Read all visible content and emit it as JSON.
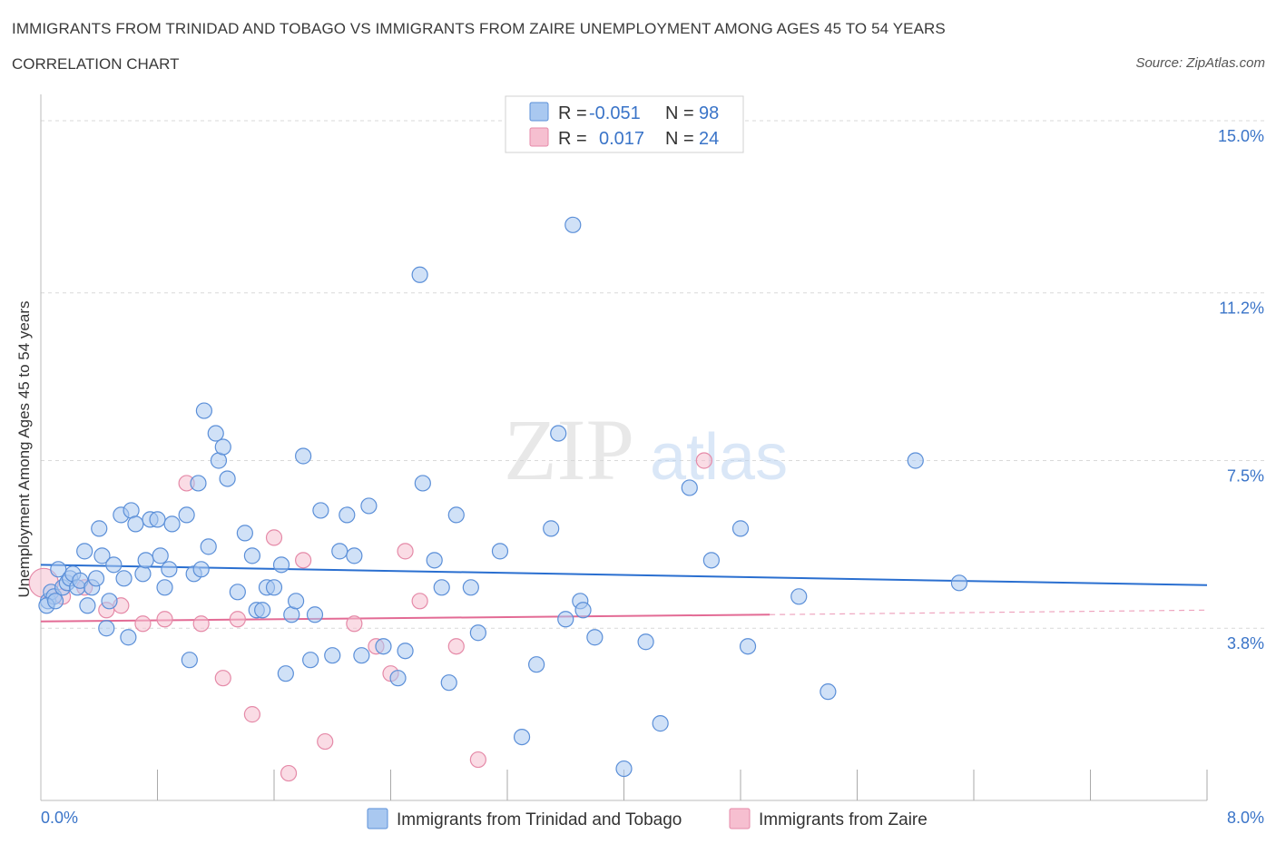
{
  "title": "IMMIGRANTS FROM TRINIDAD AND TOBAGO VS IMMIGRANTS FROM ZAIRE UNEMPLOYMENT AMONG AGES 45 TO 54 YEARS",
  "subtitle": "CORRELATION CHART",
  "source": "Source: ZipAtlas.com",
  "watermark": {
    "zip": "ZIP",
    "atlas": "atlas"
  },
  "colors": {
    "blue_fill": "#a9c8f0",
    "blue_stroke": "#5b8fd8",
    "blue_line": "#2a6fd0",
    "pink_fill": "#f6bfd0",
    "pink_stroke": "#e58aa8",
    "pink_line": "#e36b95",
    "accent_text": "#3a74c8",
    "grid": "#d9d9d9"
  },
  "legend": {
    "rows": [
      {
        "r_label": "R = ",
        "r_value": "-0.051",
        "n_label": "N = ",
        "n_value": "98",
        "color": "blue"
      },
      {
        "r_label": "R = ",
        "r_value": "0.017",
        "n_label": "N = ",
        "n_value": "24",
        "color": "pink"
      }
    ]
  },
  "chart_data": {
    "type": "scatter",
    "title": "IMMIGRANTS FROM TRINIDAD AND TOBAGO VS IMMIGRANTS FROM ZAIRE UNEMPLOYMENT AMONG AGES 45 TO 54 YEARS",
    "subtitle": "CORRELATION CHART",
    "xlabel": "",
    "ylabel": "Unemployment Among Ages 45 to 54 years",
    "xlim": [
      0,
      8
    ],
    "ylim": [
      0,
      15.3
    ],
    "x_tick_labels": [
      {
        "value": 0,
        "label": "0.0%"
      },
      {
        "value": 8,
        "label": "8.0%"
      }
    ],
    "y_tick_labels": [
      {
        "value": 15.0,
        "label": "15.0%"
      },
      {
        "value": 11.2,
        "label": "11.2%"
      },
      {
        "value": 7.5,
        "label": "7.5%"
      },
      {
        "value": 3.8,
        "label": "3.8%"
      }
    ],
    "x_minor_ticks": [
      0.8,
      1.6,
      2.4,
      3.2,
      4.0,
      4.8,
      5.6,
      6.4,
      7.2,
      8.0
    ],
    "grid": true,
    "legend_position": "bottom-center",
    "series": [
      {
        "name": "Immigrants from Trinidad and Tobago",
        "color": "blue",
        "trend": {
          "x": [
            0,
            8
          ],
          "y": [
            5.2,
            4.75
          ]
        },
        "points": [
          [
            0.05,
            4.4
          ],
          [
            0.07,
            4.6
          ],
          [
            0.09,
            4.5
          ],
          [
            0.12,
            5.1
          ],
          [
            0.15,
            4.7
          ],
          [
            0.18,
            4.8
          ],
          [
            0.2,
            4.9
          ],
          [
            0.22,
            5.0
          ],
          [
            0.25,
            4.7
          ],
          [
            0.27,
            4.85
          ],
          [
            0.3,
            5.5
          ],
          [
            0.32,
            4.3
          ],
          [
            0.35,
            4.7
          ],
          [
            0.38,
            4.9
          ],
          [
            0.4,
            6.0
          ],
          [
            0.42,
            5.4
          ],
          [
            0.45,
            3.8
          ],
          [
            0.47,
            4.4
          ],
          [
            0.5,
            5.2
          ],
          [
            0.55,
            6.3
          ],
          [
            0.57,
            4.9
          ],
          [
            0.6,
            3.6
          ],
          [
            0.62,
            6.4
          ],
          [
            0.65,
            6.1
          ],
          [
            0.7,
            5.0
          ],
          [
            0.72,
            5.3
          ],
          [
            0.75,
            6.2
          ],
          [
            0.8,
            6.2
          ],
          [
            0.82,
            5.4
          ],
          [
            0.85,
            4.7
          ],
          [
            0.88,
            5.1
          ],
          [
            0.9,
            6.1
          ],
          [
            1.0,
            6.3
          ],
          [
            1.02,
            3.1
          ],
          [
            1.05,
            5.0
          ],
          [
            1.08,
            7.0
          ],
          [
            1.1,
            5.1
          ],
          [
            1.12,
            8.6
          ],
          [
            1.15,
            5.6
          ],
          [
            1.2,
            8.1
          ],
          [
            1.22,
            7.5
          ],
          [
            1.25,
            7.8
          ],
          [
            1.28,
            7.1
          ],
          [
            1.35,
            4.6
          ],
          [
            1.4,
            5.9
          ],
          [
            1.45,
            5.4
          ],
          [
            1.48,
            4.2
          ],
          [
            1.52,
            4.2
          ],
          [
            1.55,
            4.7
          ],
          [
            1.6,
            4.7
          ],
          [
            1.65,
            5.2
          ],
          [
            1.68,
            2.8
          ],
          [
            1.72,
            4.1
          ],
          [
            1.75,
            4.4
          ],
          [
            1.8,
            7.6
          ],
          [
            1.85,
            3.1
          ],
          [
            1.88,
            4.1
          ],
          [
            1.92,
            6.4
          ],
          [
            2.0,
            3.2
          ],
          [
            2.05,
            5.5
          ],
          [
            2.1,
            6.3
          ],
          [
            2.15,
            5.4
          ],
          [
            2.2,
            3.2
          ],
          [
            2.25,
            6.5
          ],
          [
            2.35,
            3.4
          ],
          [
            2.45,
            2.7
          ],
          [
            2.5,
            3.3
          ],
          [
            2.6,
            11.6
          ],
          [
            2.62,
            7.0
          ],
          [
            2.7,
            5.3
          ],
          [
            2.75,
            4.7
          ],
          [
            2.8,
            2.6
          ],
          [
            2.85,
            6.3
          ],
          [
            2.95,
            4.7
          ],
          [
            3.0,
            3.7
          ],
          [
            3.15,
            5.5
          ],
          [
            3.3,
            1.4
          ],
          [
            3.4,
            3.0
          ],
          [
            3.5,
            6.0
          ],
          [
            3.55,
            8.1
          ],
          [
            3.6,
            4.0
          ],
          [
            3.65,
            12.7
          ],
          [
            3.7,
            4.4
          ],
          [
            3.72,
            4.2
          ],
          [
            3.8,
            3.6
          ],
          [
            4.0,
            0.7
          ],
          [
            4.15,
            3.5
          ],
          [
            4.25,
            1.7
          ],
          [
            4.45,
            6.9
          ],
          [
            4.6,
            5.3
          ],
          [
            4.8,
            6.0
          ],
          [
            4.85,
            3.4
          ],
          [
            5.2,
            4.5
          ],
          [
            5.4,
            2.4
          ],
          [
            6.0,
            7.5
          ],
          [
            6.3,
            4.8
          ],
          [
            0.04,
            4.3
          ],
          [
            0.1,
            4.4
          ]
        ]
      },
      {
        "name": "Immigrants from Zaire",
        "color": "pink",
        "trend": {
          "x": [
            0,
            5.0
          ],
          "y": [
            3.95,
            4.1
          ],
          "dashed_to": [
            8,
            4.2
          ]
        },
        "points": [
          [
            0.02,
            4.8
          ],
          [
            0.15,
            4.5
          ],
          [
            0.3,
            4.7
          ],
          [
            0.45,
            4.2
          ],
          [
            0.55,
            4.3
          ],
          [
            0.7,
            3.9
          ],
          [
            0.85,
            4.0
          ],
          [
            1.0,
            7.0
          ],
          [
            1.1,
            3.9
          ],
          [
            1.25,
            2.7
          ],
          [
            1.35,
            4.0
          ],
          [
            1.45,
            1.9
          ],
          [
            1.6,
            5.8
          ],
          [
            1.7,
            0.6
          ],
          [
            1.8,
            5.3
          ],
          [
            1.95,
            1.3
          ],
          [
            2.15,
            3.9
          ],
          [
            2.3,
            3.4
          ],
          [
            2.4,
            2.8
          ],
          [
            2.5,
            5.5
          ],
          [
            2.6,
            4.4
          ],
          [
            2.85,
            3.4
          ],
          [
            3.0,
            0.9
          ],
          [
            4.55,
            7.5
          ]
        ]
      }
    ]
  },
  "axis_labels": {
    "x_left": "0.0%",
    "x_right": "8.0%"
  }
}
